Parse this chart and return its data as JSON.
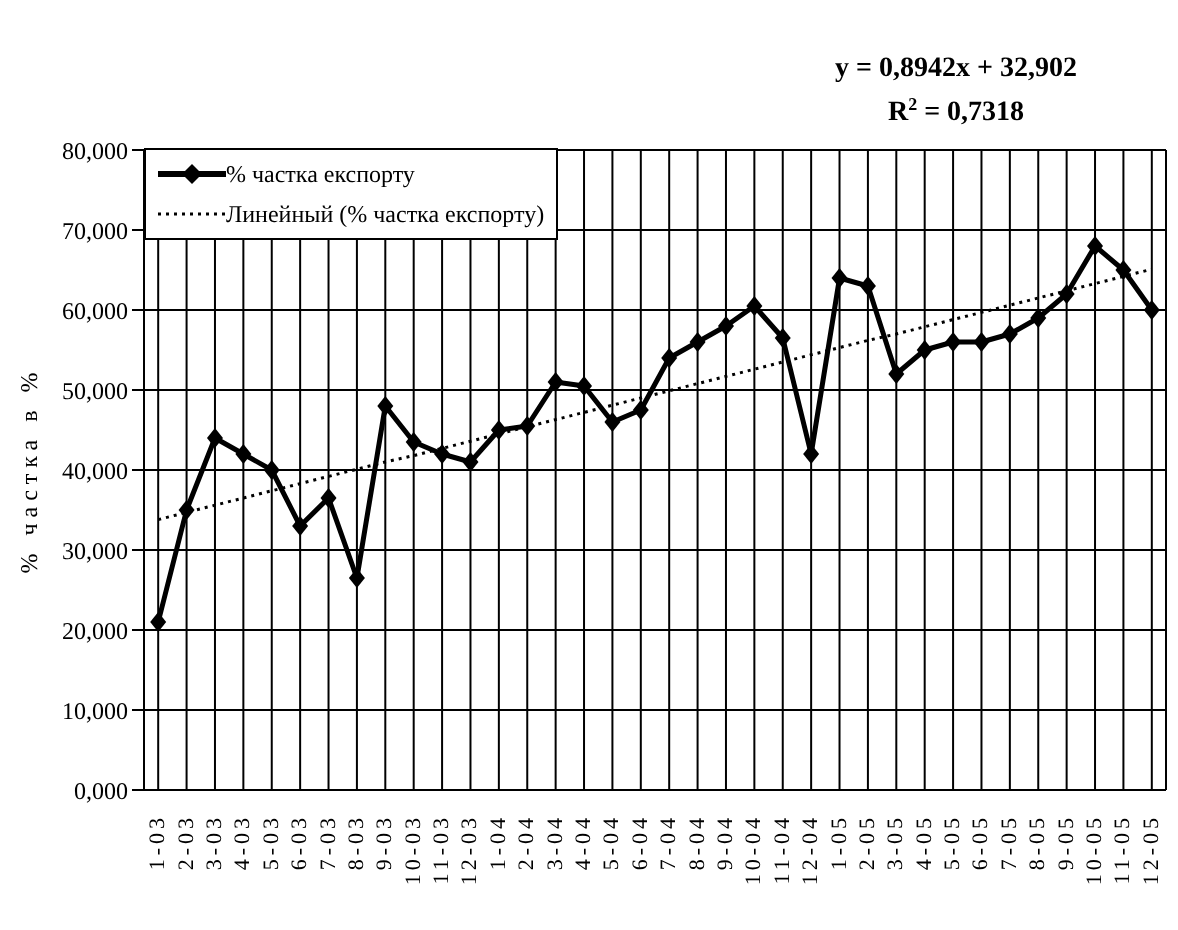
{
  "chart_data": {
    "type": "line",
    "ylabel": "% частка в %",
    "categories": [
      "1-03",
      "2-03",
      "3-03",
      "4-03",
      "5-03",
      "6-03",
      "7-03",
      "8-03",
      "9-03",
      "10-03",
      "11-03",
      "12-03",
      "1-04",
      "2-04",
      "3-04",
      "4-04",
      "5-04",
      "6-04",
      "7-04",
      "8-04",
      "9-04",
      "10-04",
      "11-04",
      "12-04",
      "1-05",
      "2-05",
      "3-05",
      "4-05",
      "5-05",
      "6-05",
      "7-05",
      "8-05",
      "9-05",
      "10-05",
      "11-05",
      "12-05"
    ],
    "series": [
      {
        "name": "% частка експорту",
        "color": "#000000",
        "marker": "diamond",
        "line_style": "solid",
        "values": [
          21,
          35,
          44,
          42,
          40,
          33,
          36.5,
          26.5,
          48,
          43.5,
          42,
          41,
          45,
          45.5,
          51,
          50.5,
          46,
          47.5,
          54,
          56,
          58,
          60.5,
          56.5,
          42,
          64,
          63,
          52,
          55,
          56,
          56,
          57,
          59,
          62,
          68,
          65,
          60
        ]
      },
      {
        "name": "Линейный (% частка експорту)",
        "color": "#000000",
        "marker": "none",
        "line_style": "dotted",
        "values": [
          33.8,
          34.7,
          35.6,
          36.5,
          37.4,
          38.3,
          39.2,
          40.1,
          41.0,
          41.8,
          42.7,
          43.6,
          44.5,
          45.4,
          46.3,
          47.2,
          48.1,
          49.0,
          49.9,
          50.8,
          51.7,
          52.6,
          53.5,
          54.4,
          55.3,
          56.2,
          57.0,
          57.9,
          58.8,
          59.7,
          60.6,
          61.5,
          62.4,
          63.3,
          64.2,
          65.1
        ]
      }
    ],
    "ylim": [
      0,
      80
    ],
    "yticks": [
      {
        "value": 0,
        "label": "0,000"
      },
      {
        "value": 10,
        "label": "10,000"
      },
      {
        "value": 20,
        "label": "20,000"
      },
      {
        "value": 30,
        "label": "30,000"
      },
      {
        "value": 40,
        "label": "40,000"
      },
      {
        "value": 50,
        "label": "50,000"
      },
      {
        "value": 60,
        "label": "60,000"
      },
      {
        "value": 70,
        "label": "70,000"
      },
      {
        "value": 80,
        "label": "80,000"
      }
    ],
    "grid": true,
    "legend": "top left",
    "annotations": [
      "y = 0,8942x + 32,902",
      "R$^{2}$ = 0,7318"
    ]
  }
}
